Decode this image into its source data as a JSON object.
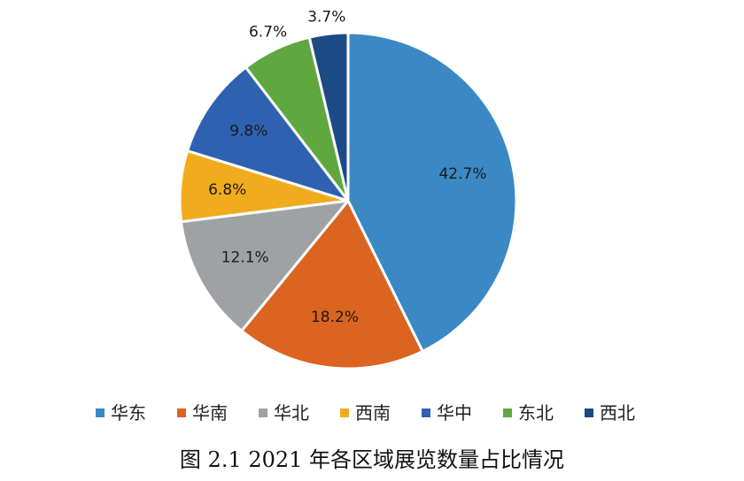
{
  "chart_data": {
    "type": "pie",
    "title": "",
    "caption": "图 2.1  2021 年各区域展览数量占比情况",
    "unit": "%",
    "start_angle_deg": 0,
    "direction": "clockwise",
    "legend_position": "bottom",
    "slices": [
      {
        "name": "华东",
        "value": 42.7,
        "label": "42.7%",
        "color": "#3b89c4"
      },
      {
        "name": "华南",
        "value": 18.2,
        "label": "18.2%",
        "color": "#db6420"
      },
      {
        "name": "华北",
        "value": 12.1,
        "label": "12.1%",
        "color": "#9fa1a4"
      },
      {
        "name": "西南",
        "value": 6.8,
        "label": "6.8%",
        "color": "#f0ac1d"
      },
      {
        "name": "华中",
        "value": 9.8,
        "label": "9.8%",
        "color": "#2e62b1"
      },
      {
        "name": "东北",
        "value": 6.7,
        "label": "6.7%",
        "color": "#5ea83f"
      },
      {
        "name": "西北",
        "value": 3.7,
        "label": "3.7%",
        "color": "#1c4a84"
      }
    ]
  }
}
